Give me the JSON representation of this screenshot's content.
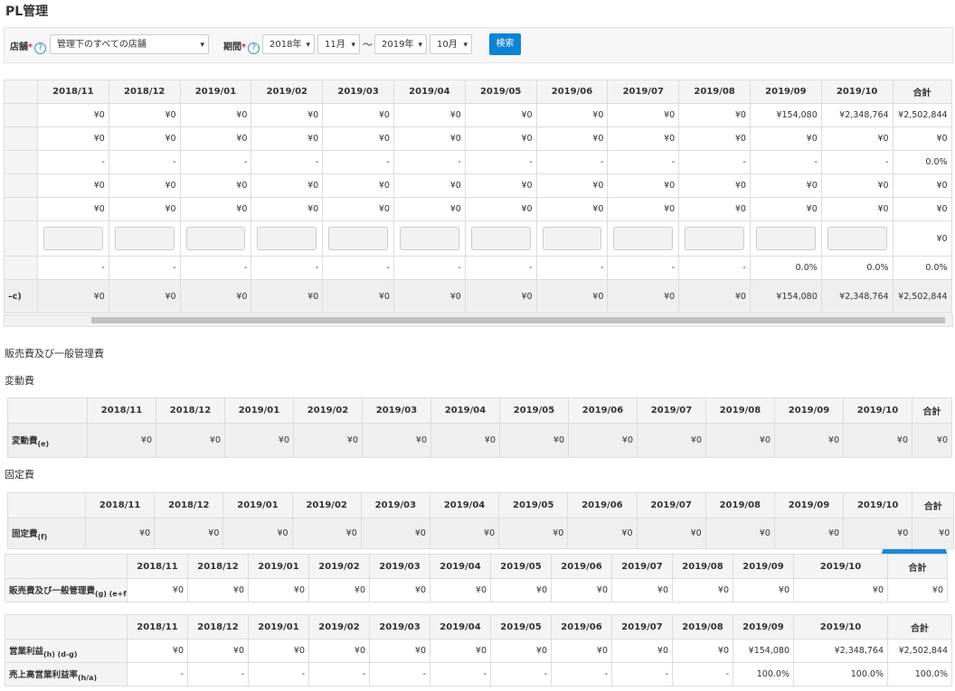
{
  "header": {
    "title": "PL管理"
  },
  "filters": {
    "store_label": "店舗",
    "required": "*",
    "help": "?",
    "store_value": "管理下のすべての店舗",
    "period_label": "期間",
    "from_year": "2018年",
    "from_month": "11月",
    "tilde": "〜",
    "to_year": "2019年",
    "to_month": "10月",
    "search": "検索"
  },
  "columns": [
    "2018/11",
    "2018/12",
    "2019/01",
    "2019/02",
    "2019/03",
    "2019/04",
    "2019/05",
    "2019/06",
    "2019/07",
    "2019/08",
    "2019/09",
    "2019/10",
    "合計"
  ],
  "sections": [
    "販売費及び一般管理費",
    "変動費",
    "固定費"
  ],
  "tables": [
    {
      "rows": [
        {
          "label": null,
          "cells": [
            "¥0",
            "¥0",
            "¥0",
            "¥0",
            "¥0",
            "¥0",
            "¥0",
            "¥0",
            "¥0",
            "¥0",
            "¥154,080",
            "¥2,348,764",
            "¥2,502,844"
          ]
        },
        {
          "label": null,
          "cells": [
            "¥0",
            "¥0",
            "¥0",
            "¥0",
            "¥0",
            "¥0",
            "¥0",
            "¥0",
            "¥0",
            "¥0",
            "¥0",
            "¥0",
            "¥0"
          ]
        },
        {
          "label": null,
          "cells": [
            "-",
            "-",
            "-",
            "-",
            "-",
            "-",
            "-",
            "-",
            "-",
            "-",
            "-",
            "-",
            "0.0%"
          ]
        },
        {
          "label": null,
          "cells": [
            "¥0",
            "¥0",
            "¥0",
            "¥0",
            "¥0",
            "¥0",
            "¥0",
            "¥0",
            "¥0",
            "¥0",
            "¥0",
            "¥0",
            "¥0"
          ]
        },
        {
          "label": null,
          "cells": [
            "¥0",
            "¥0",
            "¥0",
            "¥0",
            "¥0",
            "¥0",
            "¥0",
            "¥0",
            "¥0",
            "¥0",
            "¥0",
            "¥0",
            "¥0"
          ]
        },
        {
          "label": null,
          "cells": [
            null,
            null,
            null,
            null,
            null,
            null,
            null,
            null,
            null,
            null,
            null,
            null,
            "¥0"
          ]
        },
        {
          "label": null,
          "cells": [
            "-",
            "-",
            "-",
            "-",
            "-",
            "-",
            "-",
            "-",
            "-",
            "-",
            "0.0%",
            "0.0%",
            "0.0%"
          ]
        },
        {
          "label": "–c)",
          "cells": [
            "¥0",
            "¥0",
            "¥0",
            "¥0",
            "¥0",
            "¥0",
            "¥0",
            "¥0",
            "¥0",
            "¥0",
            "¥154,080",
            "¥2,348,764",
            "¥2,502,844"
          ]
        }
      ]
    },
    {
      "rows": [
        {
          "label": "変動費",
          "sub": "(e)",
          "cells": [
            "¥0",
            "¥0",
            "¥0",
            "¥0",
            "¥0",
            "¥0",
            "¥0",
            "¥0",
            "¥0",
            "¥0",
            "¥0",
            "¥0",
            "¥0"
          ]
        }
      ]
    },
    {
      "rows": [
        {
          "label": "固定費",
          "sub": "(f)",
          "cells": [
            "¥0",
            "¥0",
            "¥0",
            "¥0",
            "¥0",
            "¥0",
            "¥0",
            "¥0",
            "¥0",
            "¥0",
            "¥0",
            "¥0",
            "¥0"
          ]
        }
      ]
    },
    {
      "rows": [
        {
          "label": "販売費及び一般管理費",
          "sub": "(g) (e+f)",
          "cells": [
            "¥0",
            "¥0",
            "¥0",
            "¥0",
            "¥0",
            "¥0",
            "¥0",
            "¥0",
            "¥0",
            "¥0",
            "¥0",
            "¥0",
            "¥0"
          ]
        }
      ]
    },
    {
      "rows": [
        {
          "label": "営業利益",
          "sub": "(h) (d-g)",
          "cells": [
            "¥0",
            "¥0",
            "¥0",
            "¥0",
            "¥0",
            "¥0",
            "¥0",
            "¥0",
            "¥0",
            "¥0",
            "¥154,080",
            "¥2,348,764",
            "¥2,502,844"
          ]
        },
        {
          "label": "売上高営業利益率",
          "sub": "(h/a)",
          "cells": [
            "-",
            "-",
            "-",
            "-",
            "-",
            "-",
            "-",
            "-",
            "-",
            "-",
            "100.0%",
            "100.0%",
            "100.0%"
          ]
        }
      ]
    }
  ]
}
